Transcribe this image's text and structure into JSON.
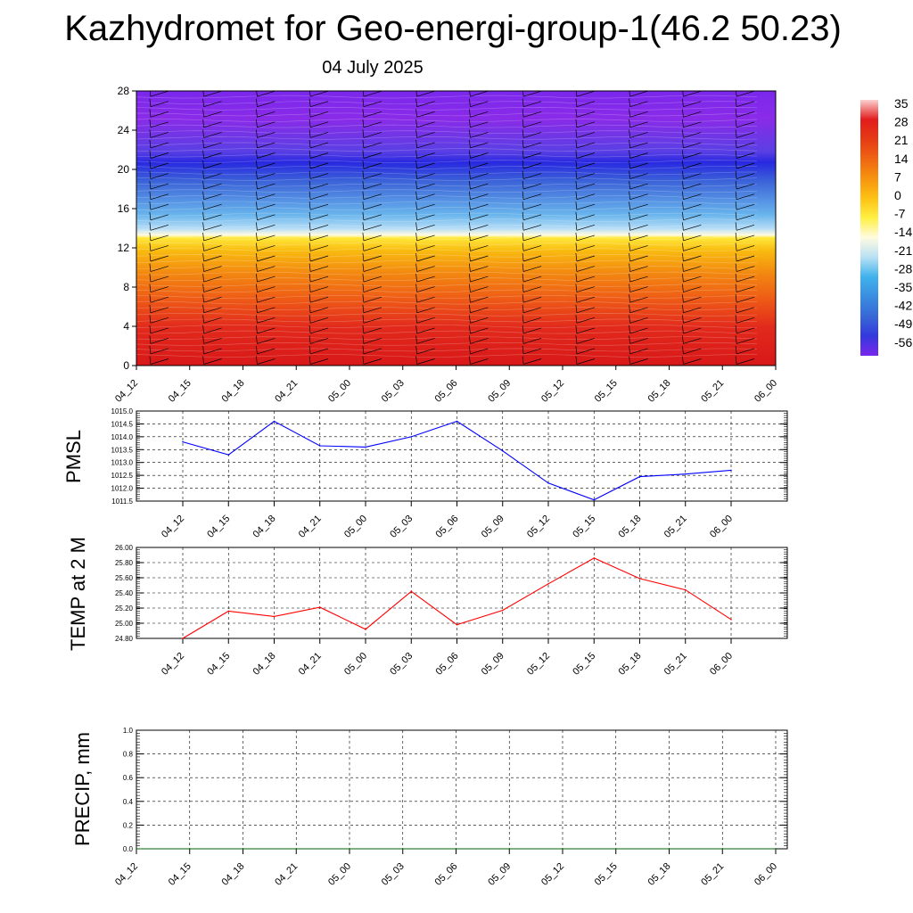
{
  "page": {
    "title": "Kazhydromet for Geo-energi-group-1(46.2 50.23)",
    "subtitle": "04 July 2025"
  },
  "chart_data": [
    {
      "type": "heatmap",
      "x_tick_labels": [
        "04_12",
        "04_15",
        "04_18",
        "04_21",
        "05_00",
        "05_03",
        "05_06",
        "05_09",
        "05_12",
        "05_15",
        "05_18",
        "05_21",
        "06_00"
      ],
      "y_tick_labels": [
        "0",
        "4",
        "8",
        "12",
        "16",
        "20",
        "24",
        "28"
      ],
      "ylim": [
        0,
        28
      ],
      "colorbar": {
        "labels": [
          "35",
          "28",
          "21",
          "14",
          "7",
          "0",
          "-7",
          "-14",
          "-21",
          "-28",
          "-35",
          "-42",
          "-49",
          "-56"
        ],
        "colors": [
          "#fbd0d0",
          "#e21c1c",
          "#e53b16",
          "#ef6511",
          "#f79410",
          "#fdc214",
          "#fff044",
          "#fffbe0",
          "#b8e0f4",
          "#3fb2ec",
          "#3a8de0",
          "#3868d6",
          "#3438dc",
          "#7a28ec"
        ]
      },
      "overlay": "wind barbs",
      "grid": false
    },
    {
      "type": "line",
      "ylabel": "PMSL",
      "x": [
        "04_12",
        "04_15",
        "04_18",
        "04_21",
        "05_00",
        "05_03",
        "05_06",
        "05_09",
        "05_12",
        "05_15",
        "05_18",
        "05_21",
        "06_00"
      ],
      "series": [
        {
          "values": [
            1013.8,
            1013.3,
            1014.6,
            1013.65,
            1013.6,
            1014.0,
            1014.6,
            1013.45,
            1012.2,
            1011.55,
            1012.45,
            1012.55,
            1012.7
          ],
          "color": "#0000ff"
        }
      ],
      "ylim": [
        1011.5,
        1015.0
      ],
      "y_tick_labels": [
        "1011.5",
        "1012.0",
        "1012.5",
        "1013.0",
        "1013.5",
        "1014.0",
        "1014.5",
        "1015.0"
      ],
      "grid": true
    },
    {
      "type": "line",
      "ylabel": "TEMP at 2 M",
      "x": [
        "04_12",
        "04_15",
        "04_18",
        "04_21",
        "05_00",
        "05_03",
        "05_06",
        "05_09",
        "05_12",
        "05_15",
        "05_18",
        "05_21",
        "06_00"
      ],
      "series": [
        {
          "values": [
            24.8,
            25.16,
            25.09,
            25.21,
            24.92,
            25.42,
            24.98,
            25.17,
            25.52,
            25.86,
            25.59,
            25.44,
            25.05
          ],
          "color": "#ff0000"
        }
      ],
      "ylim": [
        24.8,
        26.0
      ],
      "y_tick_labels": [
        "24.80",
        "25.00",
        "25.20",
        "25.40",
        "25.60",
        "25.80",
        "26.00"
      ],
      "grid": true
    },
    {
      "type": "line",
      "ylabel": "PRECIP, mm",
      "x_tick_labels": [
        "04_12",
        "04_15",
        "04_18",
        "04_21",
        "05_00",
        "05_03",
        "05_06",
        "05_09",
        "05_12",
        "05_15",
        "05_18",
        "05_21",
        "06_00"
      ],
      "series": [
        {
          "values": [
            0,
            0,
            0,
            0,
            0,
            0,
            0,
            0,
            0,
            0,
            0,
            0,
            0
          ],
          "color": "#006400"
        }
      ],
      "ylim": [
        0.0,
        1.0
      ],
      "y_tick_labels": [
        "0.0",
        "0.2",
        "0.4",
        "0.6",
        "0.8",
        "1.0"
      ],
      "grid": true
    }
  ]
}
